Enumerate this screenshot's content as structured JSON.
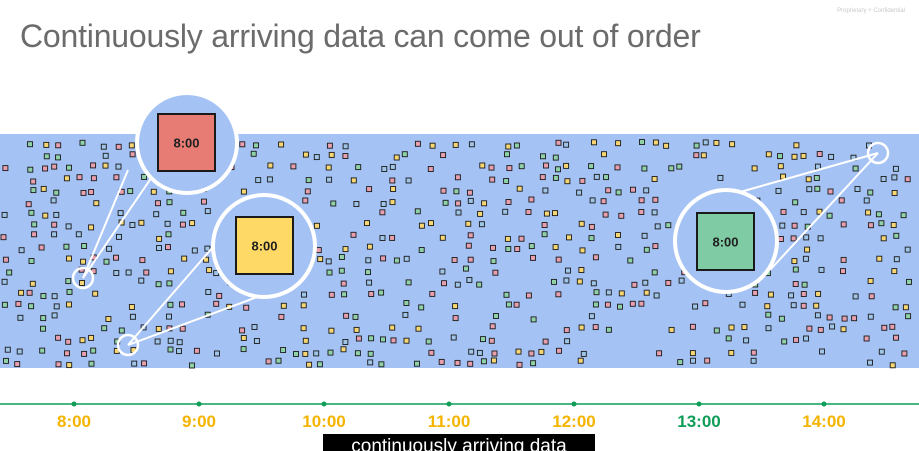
{
  "watermark": "Proprietary + Confidential",
  "title": "Continuously arriving data can come out of order",
  "timeline": {
    "labels": [
      {
        "text": "8:00",
        "color": "#f4b400"
      },
      {
        "text": "9:00",
        "color": "#f4b400"
      },
      {
        "text": "10:00",
        "color": "#f4b400"
      },
      {
        "text": "11:00",
        "color": "#f4b400"
      },
      {
        "text": "12:00",
        "color": "#f4b400"
      },
      {
        "text": "13:00",
        "color": "#0f9d58"
      },
      {
        "text": "14:00",
        "color": "#f4b400"
      }
    ],
    "line_color": "#0f9d58"
  },
  "callouts": [
    {
      "label": "8:00",
      "color": "#e67c73"
    },
    {
      "label": "8:00",
      "color": "#ffd966"
    },
    {
      "label": "8:00",
      "color": "#7fcca4"
    }
  ],
  "stream": {
    "band_color": "#a4c2f4",
    "element_colors": [
      "#e8a0b0",
      "#f7d774",
      "#8fd1a8",
      "#9fc5e8"
    ]
  },
  "caption": "continuously arriving data"
}
